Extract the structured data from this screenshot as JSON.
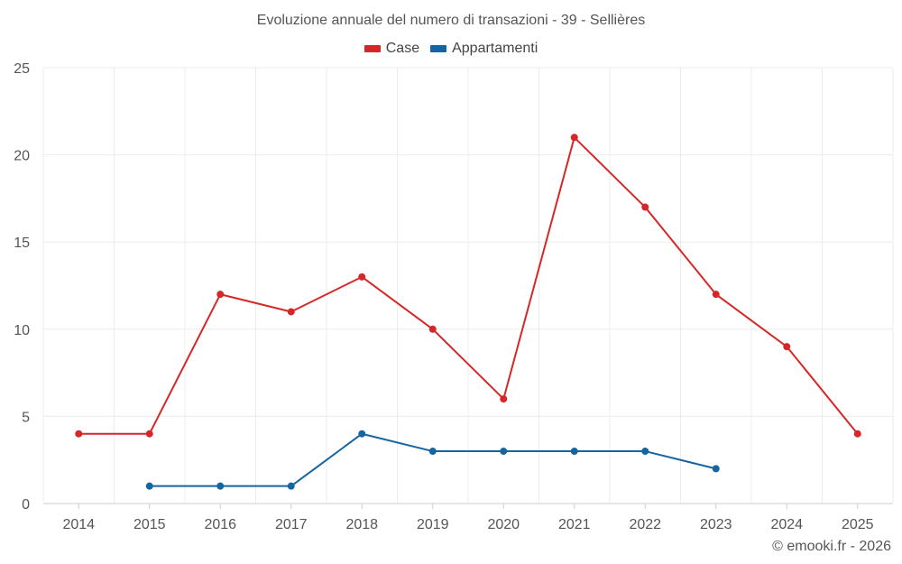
{
  "chart_data": {
    "type": "line",
    "title": "Evoluzione annuale del numero di transazioni - 39 - Sellières",
    "xlabel": "",
    "ylabel": "",
    "categories": [
      "2014",
      "2015",
      "2016",
      "2017",
      "2018",
      "2019",
      "2020",
      "2021",
      "2022",
      "2023",
      "2024",
      "2025"
    ],
    "ylim": [
      0,
      25
    ],
    "yticks": [
      0,
      5,
      10,
      15,
      20,
      25
    ],
    "grid": true,
    "legend_position": "top-center",
    "series": [
      {
        "name": "Case",
        "color": "#d62728",
        "values": [
          4,
          4,
          12,
          11,
          13,
          10,
          6,
          21,
          17,
          12,
          9,
          4
        ]
      },
      {
        "name": "Appartamenti",
        "color": "#1565a0",
        "values": [
          null,
          1,
          1,
          1,
          4,
          3,
          3,
          3,
          3,
          2,
          null,
          null
        ]
      }
    ]
  },
  "credit": "© emooki.fr - 2026"
}
